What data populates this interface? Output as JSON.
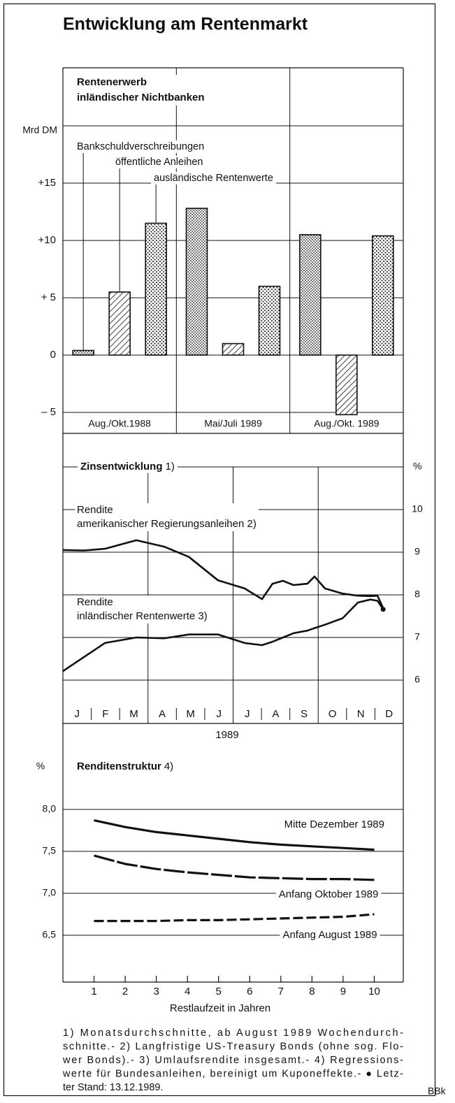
{
  "title": "Entwicklung am Rentenmarkt",
  "chart_data": [
    {
      "type": "bar",
      "title": "Rentenerwerb\ninländischer Nichtbanken",
      "ylabel": "Mrd DM",
      "categories": [
        "Aug./Okt.1988",
        "Mai/Juli 1989",
        "Aug./Okt. 1989"
      ],
      "series": [
        {
          "name": "Bankschuldverschreibungen",
          "color": "#111",
          "pattern": "fine-dots",
          "values": [
            0.4,
            12.8,
            10.5
          ]
        },
        {
          "name": "öffentliche Anleihen",
          "color": "#111",
          "pattern": "hatch",
          "values": [
            5.5,
            1.0,
            -5.2
          ]
        },
        {
          "name": "ausländische Rentenwerte",
          "color": "#111",
          "pattern": "dots",
          "values": [
            11.5,
            6.0,
            10.4
          ]
        }
      ],
      "ylim": [
        -5,
        20
      ],
      "yticks": [
        {
          "value": -5,
          "label": "– 5"
        },
        0,
        {
          "value": 5,
          "label": "+ 5"
        },
        {
          "value": 10,
          "label": "+10"
        },
        {
          "value": 15,
          "label": "+15"
        }
      ],
      "grid": true
    },
    {
      "type": "line",
      "title": "Zinsentwicklung",
      "title_note": "1)",
      "ylabel": "%",
      "y_axis_side": "right",
      "month_labels": [
        "J",
        "F",
        "M",
        "A",
        "M",
        "J",
        "J",
        "A",
        "S",
        "O",
        "N",
        "D"
      ],
      "year_label": "1989",
      "xlim": [
        0,
        12
      ],
      "x": [
        0,
        0.74,
        1.48,
        2.59,
        3.57,
        4.44,
        5.47,
        6.41,
        7.02,
        7.39,
        7.76,
        8.13,
        8.62,
        8.87,
        9.24,
        9.86,
        10.4,
        10.84,
        11.09,
        11.29
      ],
      "series": [
        {
          "name": "Rendite\namerikanischer Regierungsanleihen 2)",
          "color": "#111",
          "values": [
            9.05,
            9.04,
            9.08,
            9.28,
            9.13,
            8.89,
            8.34,
            8.15,
            7.9,
            8.26,
            8.33,
            8.23,
            8.26,
            8.43,
            8.15,
            8.03,
            7.98,
            7.97,
            7.98,
            7.69
          ]
        },
        {
          "name": "Rendite\ninländischer Rentenwerte 3)",
          "color": "#111",
          "marker_last": true,
          "values": [
            6.21,
            6.54,
            6.87,
            7.0,
            6.98,
            7.07,
            7.07,
            6.87,
            6.82,
            6.9,
            7.0,
            7.1,
            7.16,
            7.22,
            7.3,
            7.45,
            7.82,
            7.89,
            7.86,
            7.66
          ]
        }
      ],
      "ylim": [
        5,
        11
      ],
      "yticks": [
        6,
        7,
        8,
        9,
        10
      ],
      "grid": true
    },
    {
      "type": "line",
      "title": "Renditenstruktur",
      "title_note": "4)",
      "ylabel": "%",
      "xlabel": "Restlaufzeit in Jahren",
      "x": [
        1,
        2,
        3,
        4,
        5,
        6,
        7,
        8,
        9,
        10
      ],
      "xlim": [
        0,
        11
      ],
      "xticks": [
        1,
        2,
        3,
        4,
        5,
        6,
        7,
        8,
        9,
        10
      ],
      "series": [
        {
          "name": "Mitte Dezember 1989",
          "color": "#111",
          "dash": "solid",
          "values": [
            7.87,
            7.79,
            7.73,
            7.69,
            7.65,
            7.61,
            7.58,
            7.56,
            7.54,
            7.52
          ]
        },
        {
          "name": "Anfang Oktober 1989",
          "color": "#111",
          "dash": "long-dash",
          "values": [
            7.45,
            7.35,
            7.29,
            7.25,
            7.22,
            7.19,
            7.18,
            7.17,
            7.17,
            7.16
          ]
        },
        {
          "name": "Anfang August 1989",
          "color": "#111",
          "dash": "dash",
          "values": [
            6.67,
            6.67,
            6.67,
            6.68,
            6.68,
            6.69,
            6.7,
            6.71,
            6.72,
            6.75
          ]
        }
      ],
      "ylim": [
        6,
        9
      ],
      "yticks": [
        {
          "value": 6.5,
          "label": "6,5"
        },
        {
          "value": 7,
          "label": "7,0"
        },
        {
          "value": 7.5,
          "label": "7,5"
        },
        {
          "value": 8,
          "label": "8,0"
        }
      ],
      "grid": true
    }
  ],
  "footnotes": [
    "1) Monatsdurchschnitte, ab August 1989 Wochendurch-",
    "schnitte.- 2) Langfristige US-Treasury Bonds (ohne sog. Flo-",
    "wer Bonds).- 3) Umlaufsrendite insgesamt.- 4) Regressions-",
    "werte für Bundesanleihen, bereinigt um Kuponeffekte.- ● Letz-",
    "ter Stand: 13.12.1989."
  ],
  "source": "BBk"
}
